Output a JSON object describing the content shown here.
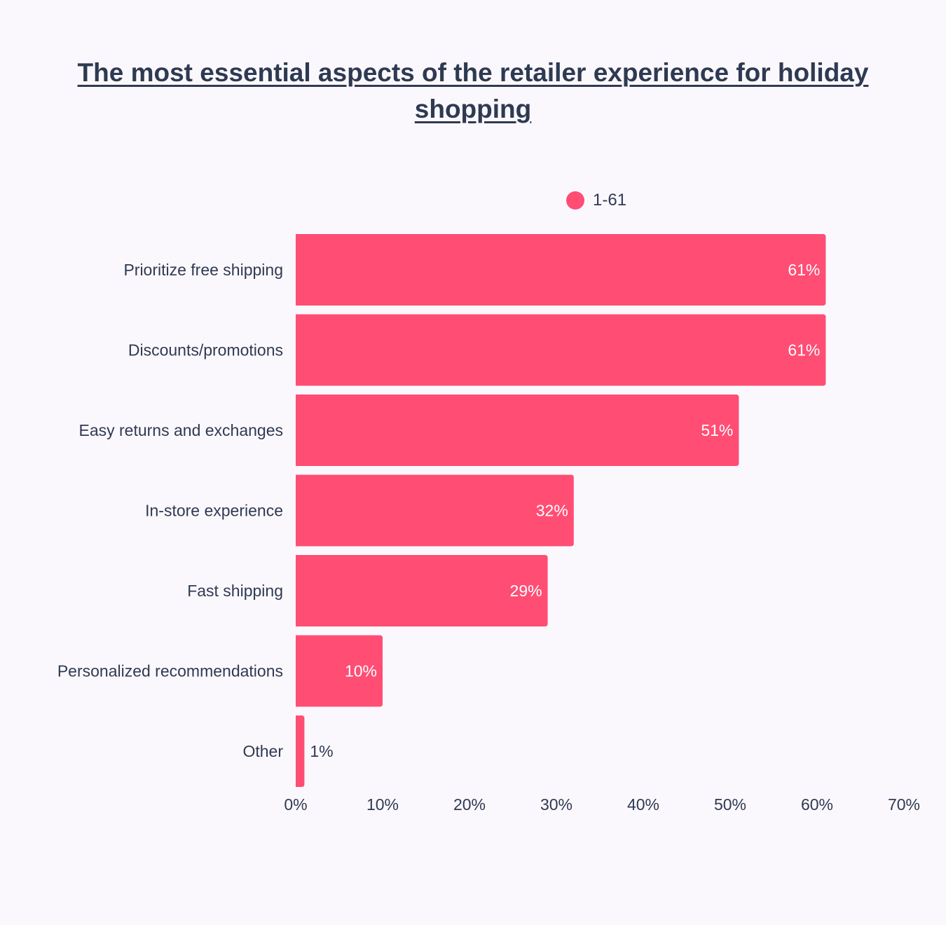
{
  "chart_data": {
    "type": "bar",
    "orientation": "horizontal",
    "title": "The most essential aspects of the retailer experience for holiday shopping",
    "categories": [
      "Prioritize free shipping",
      "Discounts/promotions",
      "Easy returns and exchanges",
      "In-store experience",
      "Fast shipping",
      "Personalized recommendations",
      "Other"
    ],
    "series": [
      {
        "name": "1-61",
        "values": [
          61,
          61,
          51,
          32,
          29,
          10,
          1
        ],
        "value_labels": [
          "61%",
          "61%",
          "51%",
          "32%",
          "29%",
          "10%",
          "1%"
        ]
      }
    ],
    "x_ticks": [
      "0%",
      "10%",
      "20%",
      "30%",
      "40%",
      "50%",
      "60%",
      "70%"
    ],
    "xlim": [
      0,
      70
    ],
    "grid": false,
    "legend_position": "top"
  },
  "colors": {
    "bar": "#ff4d74",
    "text": "#2e3a52",
    "label_inside": "#ffffff",
    "background": "#fbf8fd"
  }
}
